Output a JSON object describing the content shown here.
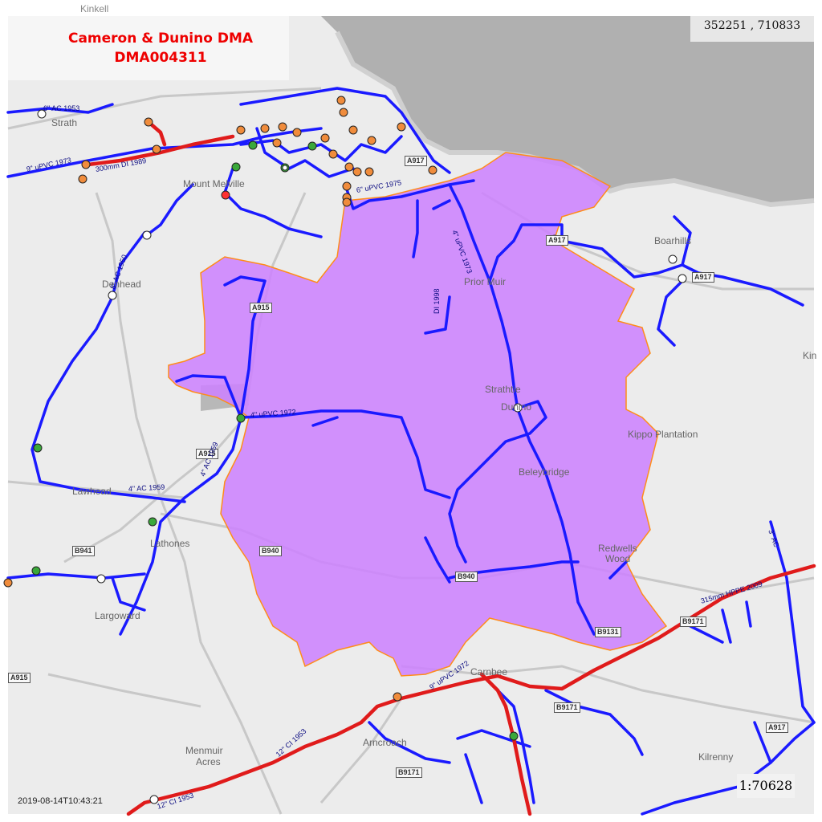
{
  "title": {
    "name": "Cameron & Dunino DMA",
    "code": "DMA004311"
  },
  "coordinates": "352251 , 710833",
  "scale": "1:70628",
  "timestamp": "2019-08-14T10:43:21",
  "colors": {
    "sea": "#b0b0b0",
    "land": "#ececec",
    "dma_fill": "#cc80ff",
    "dma_border": "#ff8c1a",
    "main_blue": "#1a1aff",
    "main_red": "#e01b1b",
    "valve_orange": "#f08c3c",
    "valve_green": "#3aa83a",
    "valve_white": "#ffffff"
  },
  "place_labels": {
    "mount_melville": "Mount Melville",
    "denhead": "Denhead",
    "prior_muir": "Prior Muir",
    "strathtie": "Strathtie",
    "dunino": "Dunino",
    "kippo": "Kippo Plantation",
    "beleybridge": "Beleybridge",
    "redwells": "Redwells",
    "redwells_wood": "Wood",
    "boarhills": "Boarhills",
    "lathones": "Lathones",
    "lawhead": "Lawhead",
    "largoward": "Largoward",
    "menmuir": "Menmuir",
    "menmuir_acres": "Acres",
    "arncroach": "Arncroach",
    "carnbee": "Carnbee",
    "kilrenny": "Kilrenny",
    "kin": "Kin",
    "strath": "Strath",
    "kinkell": "Kinkell"
  },
  "road_labels": {
    "a917_north": "A917",
    "a917_east": "A917",
    "a917_top": "A917",
    "a915_mid": "A915",
    "a915_left": "A915",
    "a915_lower": "A915",
    "b941": "B941",
    "b940": "B940",
    "b940b": "B940",
    "b9131": "B9131",
    "b9171_a": "B9171",
    "b9171_b": "B9171",
    "b9171_c": "B9171",
    "a917_se": "A917"
  },
  "pipe_labels": {
    "p1": "6\" AC 1953",
    "p2": "9\" uPVC 1973",
    "p3": "300mm DI 1989",
    "p4": "6\" uPVC 1975",
    "p5": "4\" uPVC 1973",
    "p6": "DI 1998",
    "p7": "4\" uPVC 1972",
    "p8": "4\" AC 1959",
    "p9": "4\" AC 1959",
    "p10": "8\" AC 1950",
    "p11": "315mm HPPE 2009",
    "p12": "3\" AC",
    "p13": "9\" uPVC 1972",
    "p14": "12\" CI 1953",
    "p15": "12\" CI 1953"
  }
}
